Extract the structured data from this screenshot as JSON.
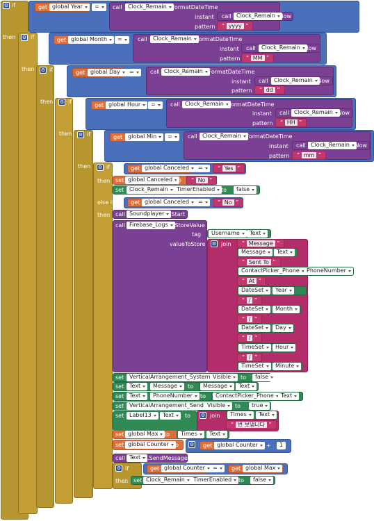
{
  "kw": {
    "if": "if",
    "then": "then",
    "else_if": "else if",
    "call": "call",
    "set": "set",
    "get": "get",
    "to": "to",
    "join": "join",
    "pattern": "pattern",
    "instant": "instant",
    "tag": "tag",
    "valueToStore": "valueToStore",
    "eq": "=",
    "plus": "+",
    "dot": "."
  },
  "vars": {
    "year": "global Year",
    "month": "global Month",
    "day": "global Day",
    "hour": "global Hour",
    "min": "global Min",
    "canceled": "global Canceled",
    "max": "global Max",
    "counter": "global Counter"
  },
  "comps": {
    "clock": "Clock_Remain",
    "soundplayer": "Soundplayer",
    "firebase": "Firebase_Logs",
    "username": "Username",
    "message": "Message",
    "contactpicker": "ContactPicker_Phone",
    "dateset": "DateSet",
    "timeset": "TimeSet",
    "va_system": "VerticalArrangement_System",
    "va_send": "VerticalArrangement_Send",
    "text": "Text",
    "label13": "Label13",
    "times": "Times"
  },
  "methods": {
    "format_date_time": ".FormatDateTime",
    "now": ".Now",
    "start": ".Start",
    "store_value": ".StoreValue",
    "send_message_direct": ".SendMessageDirect"
  },
  "props": {
    "text": "Text",
    "timer_enabled": "TimerEnabled",
    "visible": "Visible",
    "message": "Message",
    "phone_number": "PhoneNumber",
    "year": "Year",
    "month": "Month",
    "day": "Day",
    "hour": "Hour",
    "minute": "Minute"
  },
  "strings": {
    "yyyy": "yyyy",
    "mm_month": "MM",
    "dd": "dd",
    "hh": "HH",
    "mm_min": "mm",
    "yes": "Yes",
    "no": "No",
    "sent_to": "Sent To",
    "at": "At",
    "slash": "/",
    "korean": "번 보냅니다"
  },
  "values": {
    "false": "false",
    "true": "true",
    "one": "1"
  },
  "colors": {
    "control": "#b8962f",
    "logic": "#4a70bc",
    "procedure": "#7b3f93",
    "variable": "#e0703a",
    "component": "#2f8a55",
    "text": "#b22d6a"
  }
}
